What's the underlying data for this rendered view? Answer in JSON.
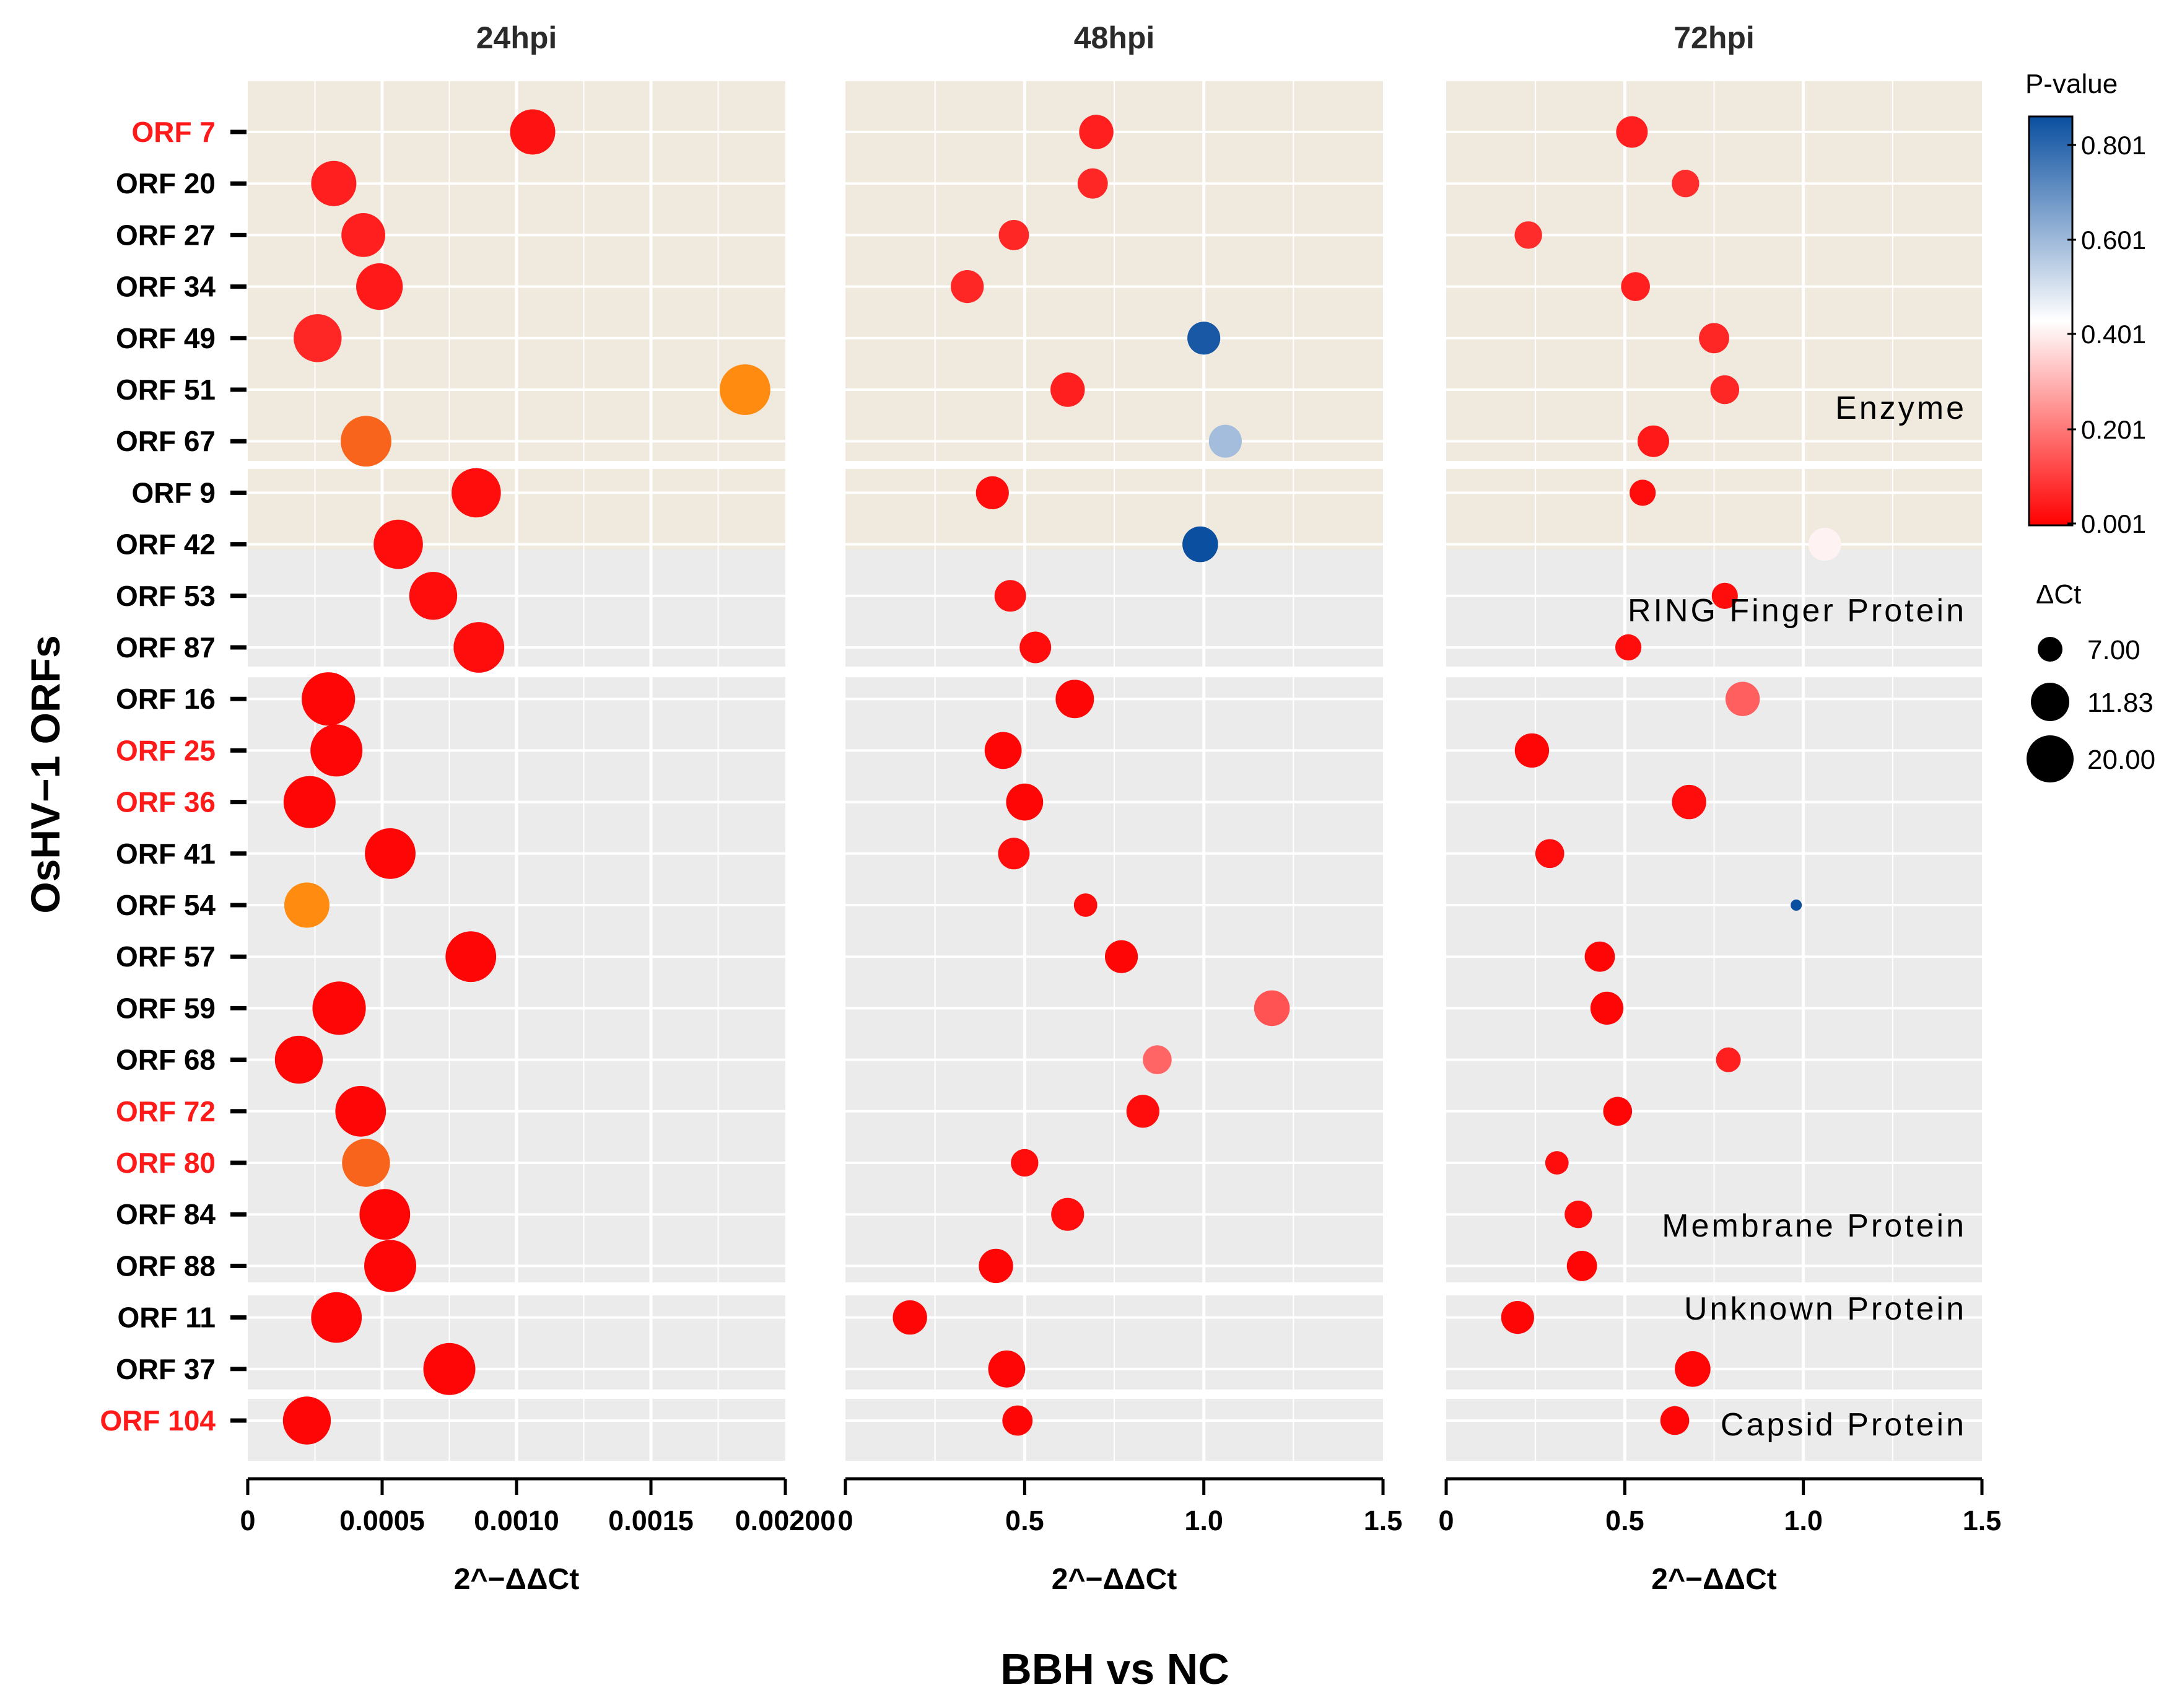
{
  "chart_data": {
    "type": "scatter",
    "subtitle": "BBH vs NC",
    "ylabel": "OsHV−1 ORFs",
    "panels": [
      {
        "title": "24hpi",
        "xlabel": "2^−ΔΔCt",
        "xlim": [
          0,
          0.002
        ],
        "ticks": [
          0,
          0.0005,
          0.001,
          0.0015,
          0.002
        ],
        "tick_labels": [
          "0",
          "0.0005",
          "0.0010",
          "0.0015",
          "0.00200"
        ]
      },
      {
        "title": "48hpi",
        "xlabel": "2^−ΔΔCt",
        "xlim": [
          0,
          1.5
        ],
        "ticks": [
          0,
          0.5,
          1.0,
          1.5
        ],
        "tick_labels": [
          "0",
          "0.5",
          "1.0",
          "1.5"
        ]
      },
      {
        "title": "72hpi",
        "xlabel": "2^−ΔΔCt",
        "xlim": [
          0,
          1.5
        ],
        "ticks": [
          0,
          0.5,
          1.0,
          1.5
        ],
        "tick_labels": [
          "0",
          "0.5",
          "1.0",
          "1.5"
        ]
      }
    ],
    "groups": [
      {
        "name": "Enzyme",
        "orfs": [
          "ORF 7",
          "ORF 20",
          "ORF 27",
          "ORF 34",
          "ORF 49",
          "ORF 51",
          "ORF 67"
        ]
      },
      {
        "name": "RING Finger Protein",
        "orfs": [
          "ORF 9",
          "ORF 42",
          "ORF 53",
          "ORF 87"
        ]
      },
      {
        "name": "Membrane Protein",
        "orfs": [
          "ORF 16",
          "ORF 25",
          "ORF 36",
          "ORF 41",
          "ORF 54",
          "ORF 57",
          "ORF 59",
          "ORF 68",
          "ORF 72",
          "ORF 80",
          "ORF 84",
          "ORF 88"
        ]
      },
      {
        "name": "Unknown Protein",
        "orfs": [
          "ORF 11",
          "ORF 37"
        ]
      },
      {
        "name": "Capsid Protein",
        "orfs": [
          "ORF 104"
        ]
      }
    ],
    "highlighted_orfs": [
      "ORF 7",
      "ORF 25",
      "ORF 36",
      "ORF 72",
      "ORF 80",
      "ORF 104"
    ],
    "points": [
      {
        "orf": "ORF 7",
        "v24": 0.00106,
        "p24": 0.03,
        "d24": 15.5,
        "v48": 0.7,
        "p48": 0.05,
        "d48": 11.5,
        "v72": 0.52,
        "p72": 0.05,
        "d72": 10.5
      },
      {
        "orf": "ORF 20",
        "v24": 0.00032,
        "p24": 0.05,
        "d24": 15.5,
        "v48": 0.69,
        "p48": 0.06,
        "d48": 10.0,
        "v72": 0.67,
        "p72": 0.07,
        "d72": 9.0
      },
      {
        "orf": "ORF 27",
        "v24": 0.00043,
        "p24": 0.05,
        "d24": 15.0,
        "v48": 0.47,
        "p48": 0.06,
        "d48": 10.0,
        "v72": 0.23,
        "p72": 0.07,
        "d72": 9.0
      },
      {
        "orf": "ORF 34",
        "v24": 0.00049,
        "p24": 0.04,
        "d24": 16.0,
        "v48": 0.34,
        "p48": 0.06,
        "d48": 11.0,
        "v72": 0.53,
        "p72": 0.05,
        "d72": 9.5
      },
      {
        "orf": "ORF 49",
        "v24": 0.00026,
        "p24": 0.06,
        "d24": 16.5,
        "v48": 1.0,
        "p48": 0.78,
        "d48": 11.0,
        "v72": 0.75,
        "p72": 0.06,
        "d72": 10.0
      },
      {
        "orf": "ORF 51",
        "v24": 0.00185,
        "p24": "orange",
        "d24": 17.5,
        "v48": 0.62,
        "p48": 0.05,
        "d48": 11.5,
        "v72": 0.78,
        "p72": 0.06,
        "d72": 9.5
      },
      {
        "orf": "ORF 67",
        "v24": 0.00044,
        "p24": "orange-dark",
        "d24": 17.5,
        "v48": 1.06,
        "p48": 0.55,
        "d48": 11.0,
        "v72": 0.58,
        "p72": 0.04,
        "d72": 10.5
      },
      {
        "orf": "ORF 9",
        "v24": 0.00085,
        "p24": 0.02,
        "d24": 17.0,
        "v48": 0.41,
        "p48": 0.02,
        "d48": 11.0,
        "v72": 0.55,
        "p72": 0.02,
        "d72": 8.5
      },
      {
        "orf": "ORF 42",
        "v24": 0.00056,
        "p24": 0.02,
        "d24": 17.0,
        "v48": 0.99,
        "p48": 0.9,
        "d48": 12.0,
        "v72": 1.06,
        "p72": 0.38,
        "d72": 11.0
      },
      {
        "orf": "ORF 53",
        "v24": 0.00069,
        "p24": 0.02,
        "d24": 16.5,
        "v48": 0.46,
        "p48": 0.03,
        "d48": 10.5,
        "v72": 0.78,
        "p72": 0.02,
        "d72": 8.5
      },
      {
        "orf": "ORF 87",
        "v24": 0.00086,
        "p24": 0.02,
        "d24": 17.5,
        "v48": 0.53,
        "p48": 0.02,
        "d48": 10.5,
        "v72": 0.51,
        "p72": 0.02,
        "d72": 8.5
      },
      {
        "orf": "ORF 16",
        "v24": 0.0003,
        "p24": 0.01,
        "d24": 18.5,
        "v48": 0.64,
        "p48": 0.01,
        "d48": 13.0,
        "v72": 0.83,
        "p72": 0.15,
        "d72": 11.5
      },
      {
        "orf": "ORF 25",
        "v24": 0.00033,
        "p24": 0.01,
        "d24": 18.0,
        "v48": 0.44,
        "p48": 0.01,
        "d48": 12.5,
        "v72": 0.24,
        "p72": 0.01,
        "d72": 11.5
      },
      {
        "orf": "ORF 36",
        "v24": 0.00023,
        "p24": 0.01,
        "d24": 18.0,
        "v48": 0.5,
        "p48": 0.01,
        "d48": 12.5,
        "v72": 0.68,
        "p72": 0.02,
        "d72": 11.5
      },
      {
        "orf": "ORF 41",
        "v24": 0.00053,
        "p24": 0.01,
        "d24": 17.5,
        "v48": 0.47,
        "p48": 0.02,
        "d48": 10.5,
        "v72": 0.29,
        "p72": 0.02,
        "d72": 9.5
      },
      {
        "orf": "ORF 54",
        "v24": 0.00022,
        "p24": "orange",
        "d24": 15.5,
        "v48": 0.67,
        "p48": 0.02,
        "d48": 7.5,
        "v72": 0.98,
        "p72": 0.95,
        "d72": 3.0
      },
      {
        "orf": "ORF 57",
        "v24": 0.00083,
        "p24": 0.01,
        "d24": 17.5,
        "v48": 0.77,
        "p48": 0.01,
        "d48": 11.0,
        "v72": 0.43,
        "p72": 0.01,
        "d72": 10.0
      },
      {
        "orf": "ORF 59",
        "v24": 0.00034,
        "p24": 0.01,
        "d24": 18.5,
        "v48": 1.19,
        "p48": 0.13,
        "d48": 12.0,
        "v72": 0.45,
        "p72": 0.01,
        "d72": 11.0
      },
      {
        "orf": "ORF 68",
        "v24": 0.00019,
        "p24": 0.01,
        "d24": 16.5,
        "v48": 0.87,
        "p48": 0.16,
        "d48": 9.5,
        "v72": 0.79,
        "p72": 0.05,
        "d72": 8.0
      },
      {
        "orf": "ORF 72",
        "v24": 0.00042,
        "p24": 0.01,
        "d24": 17.5,
        "v48": 0.83,
        "p48": 0.02,
        "d48": 11.0,
        "v72": 0.48,
        "p72": 0.01,
        "d72": 9.5
      },
      {
        "orf": "ORF 80",
        "v24": 0.00044,
        "p24": "orange-dark",
        "d24": 16.5,
        "v48": 0.5,
        "p48": 0.02,
        "d48": 9.0,
        "v72": 0.31,
        "p72": 0.02,
        "d72": 7.5
      },
      {
        "orf": "ORF 84",
        "v24": 0.00051,
        "p24": 0.01,
        "d24": 17.5,
        "v48": 0.62,
        "p48": 0.02,
        "d48": 11.0,
        "v72": 0.37,
        "p72": 0.02,
        "d72": 9.0
      },
      {
        "orf": "ORF 88",
        "v24": 0.00053,
        "p24": 0.01,
        "d24": 18.0,
        "v48": 0.42,
        "p48": 0.01,
        "d48": 11.5,
        "v72": 0.38,
        "p72": 0.01,
        "d72": 10.0
      },
      {
        "orf": "ORF 11",
        "v24": 0.00033,
        "p24": 0.01,
        "d24": 17.5,
        "v48": 0.18,
        "p48": 0.01,
        "d48": 11.5,
        "v72": 0.2,
        "p72": 0.01,
        "d72": 11.0
      },
      {
        "orf": "ORF 37",
        "v24": 0.00075,
        "p24": 0.01,
        "d24": 18.0,
        "v48": 0.45,
        "p48": 0.01,
        "d48": 12.5,
        "v72": 0.69,
        "p72": 0.01,
        "d72": 12.0
      },
      {
        "orf": "ORF 104",
        "v24": 0.00022,
        "p24": 0.01,
        "d24": 16.5,
        "v48": 0.48,
        "p48": 0.01,
        "d48": 10.0,
        "v72": 0.64,
        "p72": 0.01,
        "d72": 9.5
      }
    ],
    "legend": {
      "color_title": "P-value",
      "color_ticks": [
        "0.801",
        "0.601",
        "0.401",
        "0.201",
        "0.001"
      ],
      "size_title": "ΔCt",
      "size_values": [
        "7.00",
        "11.83",
        "20.00"
      ]
    },
    "colors": {
      "panel_bg": "#ebebeb",
      "enzyme_bg": "#efe9de",
      "gridline": "#ffffff",
      "highlight_label": "#ff1a1a",
      "orange": "#ff8c10",
      "orange_dark": "#f9641c"
    }
  }
}
